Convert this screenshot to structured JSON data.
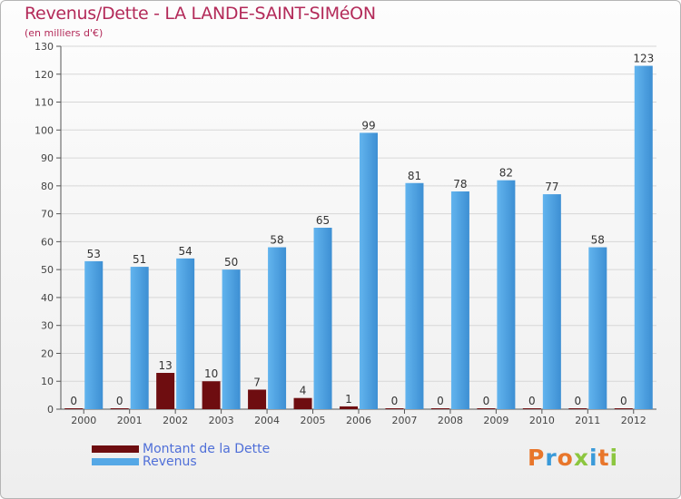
{
  "title": "Revenus/Dette - LA LANDE-SAINT-SIMéON",
  "subtitle": "(en milliers d'€)",
  "legend": {
    "debt_label": "Montant de la Dette",
    "revenue_label": "Revenus"
  },
  "logo_text": "Proxiti",
  "colors": {
    "debt": "#6e0d10",
    "revenue": "#55a8e6",
    "title": "#b32a59",
    "legend_text": "#4f6fd8"
  },
  "chart_data": {
    "type": "bar",
    "title": "Revenus/Dette - LA LANDE-SAINT-SIMéON",
    "ylabel": "(en milliers d'€)",
    "xlabel": "",
    "ylim": [
      0,
      130
    ],
    "yticks": [
      0,
      10,
      20,
      30,
      40,
      50,
      60,
      70,
      80,
      90,
      100,
      110,
      120,
      130
    ],
    "grid": true,
    "categories": [
      "2000",
      "2001",
      "2002",
      "2003",
      "2004",
      "2005",
      "2006",
      "2007",
      "2008",
      "2009",
      "2010",
      "2011",
      "2012"
    ],
    "series": [
      {
        "name": "Montant de la Dette",
        "values": [
          0,
          0,
          13,
          10,
          7,
          4,
          1,
          0,
          0,
          0,
          0,
          0,
          0
        ]
      },
      {
        "name": "Revenus",
        "values": [
          53,
          51,
          54,
          50,
          58,
          65,
          99,
          81,
          78,
          82,
          77,
          58,
          123
        ]
      }
    ]
  }
}
